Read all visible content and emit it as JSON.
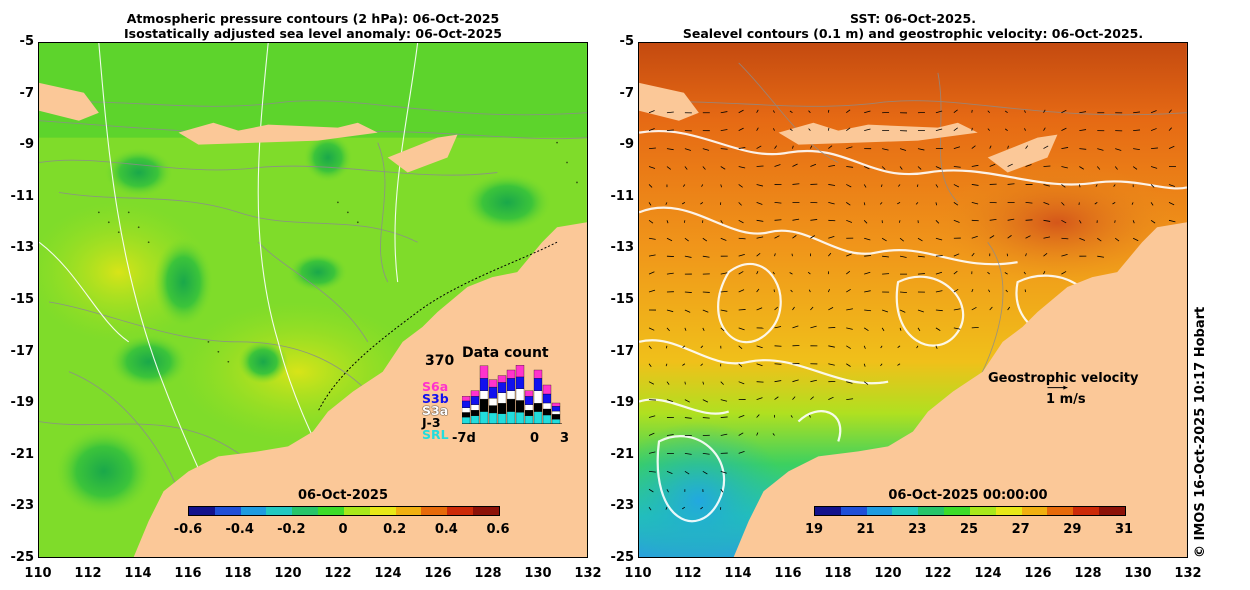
{
  "left_panel": {
    "title_line1": "Atmospheric pressure contours (2 hPa): 06-Oct-2025",
    "title_line2": "Isostatically adjusted sea level anomaly: 06-Oct-2025",
    "colorbar_title": "06-Oct-2025",
    "colorbar_ticks": [
      "-0.6",
      "-0.4",
      "-0.2",
      "0",
      "0.2",
      "0.4",
      "0.6"
    ],
    "colorbar_colors": [
      "#12128c",
      "#1f4fd8",
      "#1e9be0",
      "#22c8c0",
      "#27c46a",
      "#3cdc2a",
      "#a8e81c",
      "#e8e818",
      "#f0b010",
      "#e66a0a",
      "#cc2a08",
      "#8c1208"
    ],
    "data_count": {
      "title": "Data count",
      "max_label": "370",
      "missions": [
        "S6a",
        "S3b",
        "S3a",
        "J-3",
        "SRL"
      ],
      "mission_colors": [
        "#ff33cc",
        "#1111ee",
        "#ffffff",
        "#000000",
        "#22dddd"
      ],
      "x_labels": [
        "-7d",
        "0",
        "3"
      ]
    }
  },
  "right_panel": {
    "title_line1": "SST: 06-Oct-2025.",
    "title_line2": "Sealevel contours (0.1 m) and geostrophic velocity: 06-Oct-2025.",
    "colorbar_title": "06-Oct-2025 00:00:00",
    "colorbar_ticks": [
      "19",
      "21",
      "23",
      "25",
      "27",
      "29",
      "31"
    ],
    "colorbar_colors": [
      "#12128c",
      "#1f4fd8",
      "#1e9be0",
      "#22c8c0",
      "#27c46a",
      "#3cdc2a",
      "#a8e81c",
      "#e8e818",
      "#f0b010",
      "#e66a0a",
      "#cc2a08",
      "#8c1208"
    ],
    "velocity_label": "Geostrophic velocity",
    "velocity_scale": "1 m/s"
  },
  "axes": {
    "lat_ticks": [
      "-5",
      "-7",
      "-9",
      "-11",
      "-13",
      "-15",
      "-17",
      "-19",
      "-21",
      "-23",
      "-25"
    ],
    "lon_ticks": [
      "110",
      "112",
      "114",
      "116",
      "118",
      "120",
      "122",
      "124",
      "126",
      "128",
      "130",
      "132"
    ],
    "lat_range": [
      -25,
      -5
    ],
    "lon_range": [
      110,
      132
    ]
  },
  "credit": "© IMOS 16-Oct-2025 10:17 Hobart",
  "colors": {
    "land": "#fbc898",
    "left_sea": "#7fdc2a",
    "right_sea": "#e8901a"
  }
}
